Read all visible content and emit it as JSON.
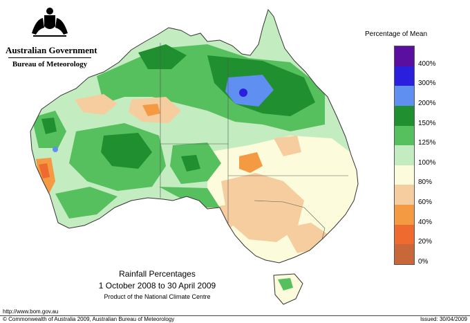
{
  "header": {
    "government": "Australian Government",
    "bureau": "Bureau of Meteorology"
  },
  "legend": {
    "title": "Percentage of Mean",
    "classes": [
      {
        "label": "400%",
        "color": "#5a0fa0"
      },
      {
        "label": "300%",
        "color": "#2a1fdc"
      },
      {
        "label": "200%",
        "color": "#5f8ff0"
      },
      {
        "label": "150%",
        "color": "#1f8f2f"
      },
      {
        "label": "125%",
        "color": "#56bf5e"
      },
      {
        "label": "100%",
        "color": "#c3ecc0"
      },
      {
        "label": "80%",
        "color": "#fcfbdb"
      },
      {
        "label": "60%",
        "color": "#f6cd9e"
      },
      {
        "label": "40%",
        "color": "#f39a42"
      },
      {
        "label": "20%",
        "color": "#ee6a2e"
      },
      {
        "label": "0%",
        "color": "#c8683a"
      }
    ]
  },
  "caption": {
    "title": "Rainfall Percentages",
    "period": "1 October 2008 to 30 April 2009",
    "product": "Product of the National Climate Centre"
  },
  "footer": {
    "url": "http://www.bom.gov.au",
    "copyright": "© Commonwealth of Australia 2009, Australian Bureau of Meteorology",
    "issued": "Issued: 30/04/2009"
  }
}
